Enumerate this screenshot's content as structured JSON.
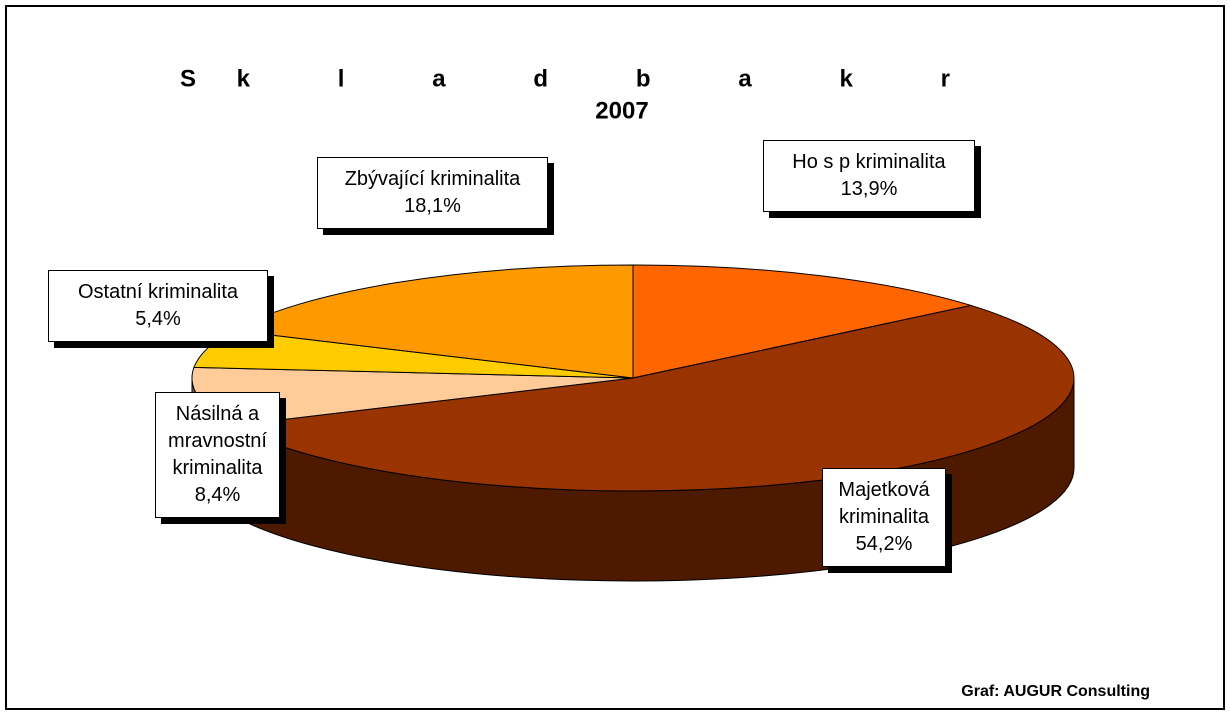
{
  "chart_data": {
    "type": "pie",
    "title": "Sk l a d b a k r",
    "subtitle": "2007",
    "categories": [
      "Ho s p kriminalita",
      "Majetková kriminalita",
      "Násilná a mravnostní kriminalita",
      "Ostatní kriminalita",
      "Zbývající kriminalita"
    ],
    "values": [
      13.9,
      54.2,
      8.4,
      5.4,
      18.1
    ],
    "value_labels": [
      "13,9%",
      "54,2%",
      "8,4%",
      "5,4%",
      "18,1%"
    ],
    "colors": [
      "#FF6600",
      "#993300",
      "#FFCC99",
      "#FFCC00",
      "#FF9900"
    ],
    "source": "Graf: AUGUR Consulting"
  }
}
